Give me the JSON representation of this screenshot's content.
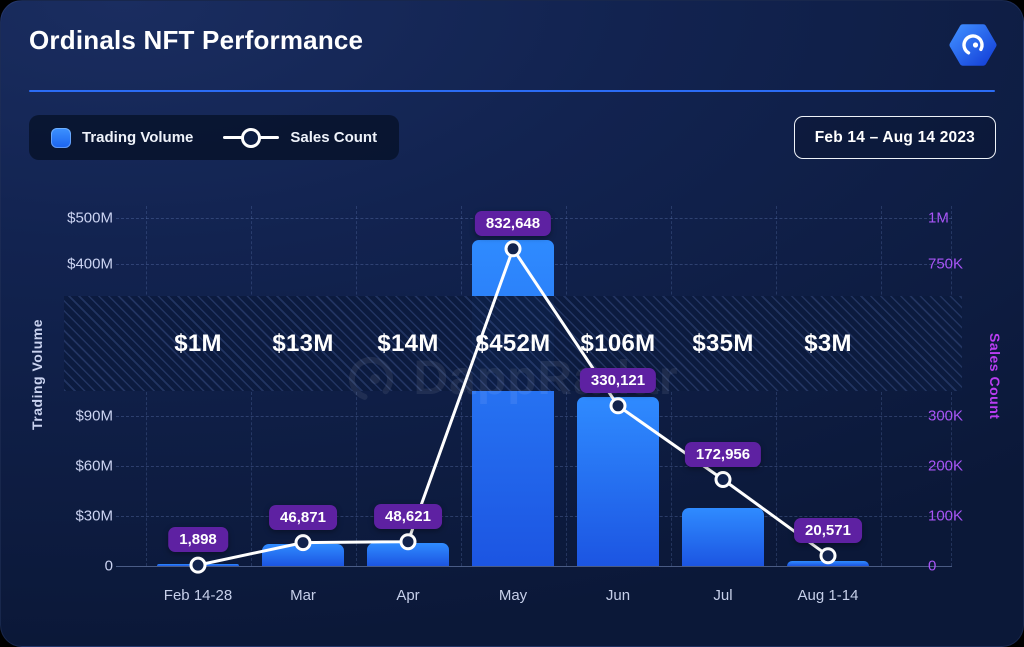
{
  "header": {
    "title": "Ordinals NFT Performance"
  },
  "legend": {
    "volume_label": "Trading Volume",
    "sales_label": "Sales Count"
  },
  "date_range_label": "Feb 14 – Aug 14 2023",
  "watermark_text": "DappRadar",
  "axes": {
    "left_title": "Trading Volume",
    "right_title": "Sales Count"
  },
  "colors": {
    "card_bg": "#0e1d44",
    "divider": "#2b6cf5",
    "bar_top": "#2f8bff",
    "bar_bottom": "#1c55e2",
    "line": "#ffffff",
    "badge_bg": "#5e21a2",
    "left_axis_text": "#ccd4f2",
    "right_axis_text": "#a855f7"
  },
  "chart_data": {
    "type": "combo",
    "title": "Ordinals NFT Performance",
    "categories": [
      "Feb 14-28",
      "Mar",
      "Apr",
      "May",
      "Jun",
      "Jul",
      "Aug 1-14"
    ],
    "series": [
      {
        "name": "Trading Volume",
        "type": "bar",
        "unit": "USD millions",
        "values": [
          1,
          13,
          14,
          452,
          106,
          35,
          3
        ],
        "labels": [
          "$1M",
          "$13M",
          "$14M",
          "$452M",
          "$106M",
          "$35M",
          "$3M"
        ]
      },
      {
        "name": "Sales Count",
        "type": "line",
        "values": [
          1898,
          46871,
          48621,
          832648,
          330121,
          172956,
          20571
        ],
        "labels": [
          "1,898",
          "46,871",
          "48,621",
          "832,648",
          "330,121",
          "172,956",
          "20,571"
        ]
      }
    ],
    "left_axis": {
      "title": "Trading Volume",
      "ticks": [
        "$500M",
        "$400M",
        "$90M",
        "$60M",
        "$30M",
        "0"
      ],
      "break_between": [
        "$90M",
        "$400M"
      ]
    },
    "right_axis": {
      "title": "Sales Count",
      "ticks": [
        "1M",
        "750K",
        "300K",
        "200K",
        "100K",
        "0"
      ],
      "break_between": [
        "300K",
        "750K"
      ]
    },
    "axis_break": true,
    "grid": "dashed",
    "legend_position": "top-left",
    "date_range": "Feb 14 – Aug 14 2023"
  }
}
